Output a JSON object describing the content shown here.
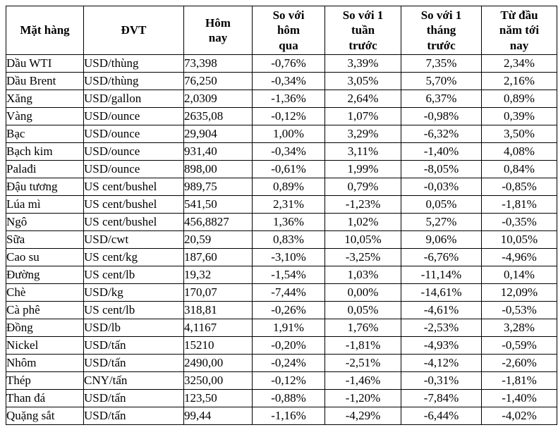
{
  "colors": {
    "border": "#000000",
    "text": "#000000",
    "background": "#ffffff"
  },
  "table": {
    "headers": [
      "Mặt hàng",
      "ĐVT",
      "Hôm\nnay",
      "So với\nhôm\nqua",
      "So với 1\ntuần\ntrước",
      "So với 1\ntháng\ntrước",
      "Từ đầu\nnăm tới\nnay"
    ],
    "rows": [
      [
        "Dầu WTI",
        "USD/thùng",
        "73,398",
        "-0,76%",
        "3,39%",
        "7,35%",
        "2,34%"
      ],
      [
        "Dầu Brent",
        "USD/thùng",
        "76,250",
        "-0,34%",
        "3,05%",
        "5,70%",
        "2,16%"
      ],
      [
        "Xăng",
        "USD/gallon",
        "2,0309",
        "-1,36%",
        "2,64%",
        "6,37%",
        "0,89%"
      ],
      [
        "Vàng",
        "USD/ounce",
        "2635,08",
        "-0,12%",
        "1,07%",
        "-0,98%",
        "0,39%"
      ],
      [
        "Bạc",
        "USD/ounce",
        "29,904",
        "1,00%",
        "3,29%",
        "-6,32%",
        "3,50%"
      ],
      [
        "Bạch kim",
        "USD/ounce",
        "931,40",
        "-0,34%",
        "3,11%",
        "-1,40%",
        "4,08%"
      ],
      [
        "Palađi",
        "USD/ounce",
        "898,00",
        "-0,61%",
        "1,99%",
        "-8,05%",
        "0,84%"
      ],
      [
        "Đậu tương",
        "US cent/bushel",
        "989,75",
        "0,89%",
        "0,79%",
        "-0,03%",
        "-0,85%"
      ],
      [
        "Lúa mì",
        "US cent/bushel",
        "541,50",
        "2,31%",
        "-1,23%",
        "0,05%",
        "-1,81%"
      ],
      [
        "Ngô",
        "US cent/bushel",
        "456,8827",
        "1,36%",
        "1,02%",
        "5,27%",
        "-0,35%"
      ],
      [
        "Sữa",
        "USD/cwt",
        "20,59",
        "0,83%",
        "10,05%",
        "9,06%",
        "10,05%"
      ],
      [
        "Cao su",
        "US cent/kg",
        "187,60",
        "-3,10%",
        "-3,25%",
        "-6,76%",
        "-4,96%"
      ],
      [
        "Đường",
        "US cent/lb",
        "19,32",
        "-1,54%",
        "1,03%",
        "-11,14%",
        "0,14%"
      ],
      [
        "Chè",
        "USD/kg",
        "170,07",
        "-7,44%",
        "0,00%",
        "-14,61%",
        "12,09%"
      ],
      [
        "Cà phê",
        "US cent/lb",
        "318,81",
        "-0,26%",
        "0,05%",
        "-4,61%",
        "-0,53%"
      ],
      [
        "Đồng",
        "USD/lb",
        "4,1167",
        "1,91%",
        "1,76%",
        "-2,53%",
        "3,28%"
      ],
      [
        "Nickel",
        "USD/tấn",
        "15210",
        "-0,20%",
        "-1,81%",
        "-4,93%",
        "-0,59%"
      ],
      [
        "Nhôm",
        "USD/tấn",
        "2490,00",
        "-0,24%",
        "-2,51%",
        "-4,12%",
        "-2,60%"
      ],
      [
        "Thép",
        "CNY/tấn",
        "3250,00",
        "-0,12%",
        "-1,46%",
        "-0,31%",
        "-1,81%"
      ],
      [
        "Than đá",
        "USD/tấn",
        "123,50",
        "-0,88%",
        "-1,20%",
        "-7,84%",
        "-1,40%"
      ],
      [
        "Quặng sắt",
        "USD/tấn",
        "99,44",
        "-1,16%",
        "-4,29%",
        "-6,44%",
        "-4,02%"
      ]
    ]
  },
  "chart_data": {
    "type": "table",
    "title": "",
    "columns": [
      "Mặt hàng",
      "ĐVT",
      "Hôm nay",
      "So với hôm qua",
      "So với 1 tuần trước",
      "So với 1 tháng trước",
      "Từ đầu năm tới nay"
    ],
    "rows": [
      [
        "Dầu WTI",
        "USD/thùng",
        "73,398",
        "-0,76%",
        "3,39%",
        "7,35%",
        "2,34%"
      ],
      [
        "Dầu Brent",
        "USD/thùng",
        "76,250",
        "-0,34%",
        "3,05%",
        "5,70%",
        "2,16%"
      ],
      [
        "Xăng",
        "USD/gallon",
        "2,0309",
        "-1,36%",
        "2,64%",
        "6,37%",
        "0,89%"
      ],
      [
        "Vàng",
        "USD/ounce",
        "2635,08",
        "-0,12%",
        "1,07%",
        "-0,98%",
        "0,39%"
      ],
      [
        "Bạc",
        "USD/ounce",
        "29,904",
        "1,00%",
        "3,29%",
        "-6,32%",
        "3,50%"
      ],
      [
        "Bạch kim",
        "USD/ounce",
        "931,40",
        "-0,34%",
        "3,11%",
        "-1,40%",
        "4,08%"
      ],
      [
        "Palađi",
        "USD/ounce",
        "898,00",
        "-0,61%",
        "1,99%",
        "-8,05%",
        "0,84%"
      ],
      [
        "Đậu tương",
        "US cent/bushel",
        "989,75",
        "0,89%",
        "0,79%",
        "-0,03%",
        "-0,85%"
      ],
      [
        "Lúa mì",
        "US cent/bushel",
        "541,50",
        "2,31%",
        "-1,23%",
        "0,05%",
        "-1,81%"
      ],
      [
        "Ngô",
        "US cent/bushel",
        "456,8827",
        "1,36%",
        "1,02%",
        "5,27%",
        "-0,35%"
      ],
      [
        "Sữa",
        "USD/cwt",
        "20,59",
        "0,83%",
        "10,05%",
        "9,06%",
        "10,05%"
      ],
      [
        "Cao su",
        "US cent/kg",
        "187,60",
        "-3,10%",
        "-3,25%",
        "-6,76%",
        "-4,96%"
      ],
      [
        "Đường",
        "US cent/lb",
        "19,32",
        "-1,54%",
        "1,03%",
        "-11,14%",
        "0,14%"
      ],
      [
        "Chè",
        "USD/kg",
        "170,07",
        "-7,44%",
        "0,00%",
        "-14,61%",
        "12,09%"
      ],
      [
        "Cà phê",
        "US cent/lb",
        "318,81",
        "-0,26%",
        "0,05%",
        "-4,61%",
        "-0,53%"
      ],
      [
        "Đồng",
        "USD/lb",
        "4,1167",
        "1,91%",
        "1,76%",
        "-2,53%",
        "3,28%"
      ],
      [
        "Nickel",
        "USD/tấn",
        "15210",
        "-0,20%",
        "-1,81%",
        "-4,93%",
        "-0,59%"
      ],
      [
        "Nhôm",
        "USD/tấn",
        "2490,00",
        "-0,24%",
        "-2,51%",
        "-4,12%",
        "-2,60%"
      ],
      [
        "Thép",
        "CNY/tấn",
        "3250,00",
        "-0,12%",
        "-1,46%",
        "-0,31%",
        "-1,81%"
      ],
      [
        "Than đá",
        "USD/tấn",
        "123,50",
        "-0,88%",
        "-1,20%",
        "-7,84%",
        "-1,40%"
      ],
      [
        "Quặng sắt",
        "USD/tấn",
        "99,44",
        "-1,16%",
        "-4,29%",
        "-6,44%",
        "-4,02%"
      ]
    ]
  }
}
